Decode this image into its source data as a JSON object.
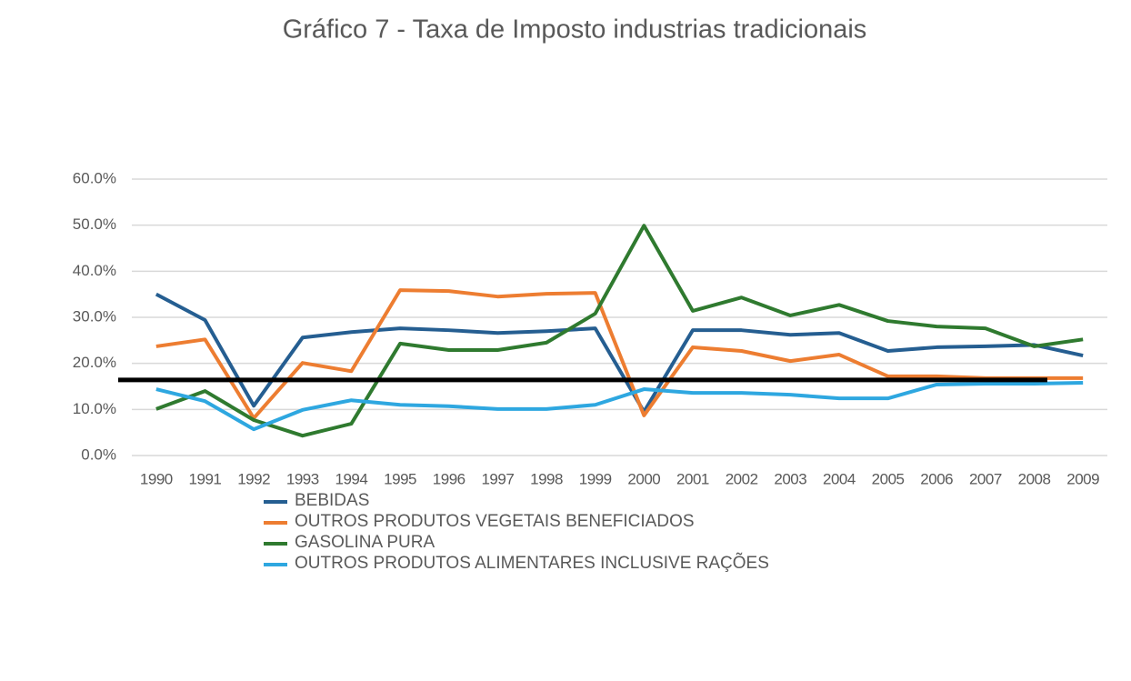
{
  "chart_data": {
    "type": "line",
    "title": "Gráfico 7 -  Taxa de Imposto industrias tradicionais",
    "categories": [
      "1990",
      "1991",
      "1992",
      "1993",
      "1994",
      "1995",
      "1996",
      "1997",
      "1998",
      "1999",
      "2000",
      "2001",
      "2002",
      "2003",
      "2004",
      "2005",
      "2006",
      "2007",
      "2008",
      "2009"
    ],
    "series": [
      {
        "name": "BEBIDAS",
        "color": "#255e91",
        "values": [
          35,
          29.4,
          10.8,
          25.6,
          26.8,
          27.6,
          27.2,
          26.6,
          27,
          27.6,
          9.5,
          27.2,
          27.2,
          26.2,
          26.6,
          22.7,
          23.5,
          23.7,
          24,
          21.7
        ]
      },
      {
        "name": "OUTROS PRODUTOS VEGETAIS BENEFICIADOS",
        "color": "#ed7d31",
        "values": [
          23.7,
          25.2,
          8.1,
          20.1,
          18.3,
          35.9,
          35.7,
          34.5,
          35.1,
          35.3,
          8.7,
          23.5,
          22.7,
          20.5,
          21.9,
          17.2,
          17.2,
          16.8,
          16.8,
          16.8
        ]
      },
      {
        "name": "GASOLINA PURA",
        "color": "#2f7a2f",
        "values": [
          10.1,
          14,
          7.7,
          4.3,
          6.9,
          24.3,
          22.9,
          22.9,
          24.5,
          30.8,
          49.9,
          31.4,
          34.3,
          30.4,
          32.7,
          29.2,
          28,
          27.6,
          23.7,
          25.2
        ]
      },
      {
        "name": "OUTROS PRODUTOS ALIMENTARES INCLUSIVE RAÇÕES",
        "color": "#2ea7e0",
        "values": [
          14.4,
          11.8,
          5.7,
          9.9,
          12,
          11,
          10.7,
          10.1,
          10.1,
          11,
          14.4,
          13.6,
          13.6,
          13.2,
          12.4,
          12.4,
          15.4,
          15.6,
          15.6,
          15.8
        ]
      }
    ],
    "reference_line": {
      "value": 16.4,
      "color": "#000000"
    },
    "ylim": [
      0,
      60
    ],
    "yticks": [
      {
        "value": 0,
        "label": "0.0%"
      },
      {
        "value": 10,
        "label": "10.0%"
      },
      {
        "value": 20,
        "label": "20.0%"
      },
      {
        "value": 30,
        "label": "30.0%"
      },
      {
        "value": 40,
        "label": "40.0%"
      },
      {
        "value": 50,
        "label": "50.0%"
      },
      {
        "value": 60,
        "label": "60.0%"
      }
    ],
    "grid": true,
    "legend": "bottom"
  }
}
